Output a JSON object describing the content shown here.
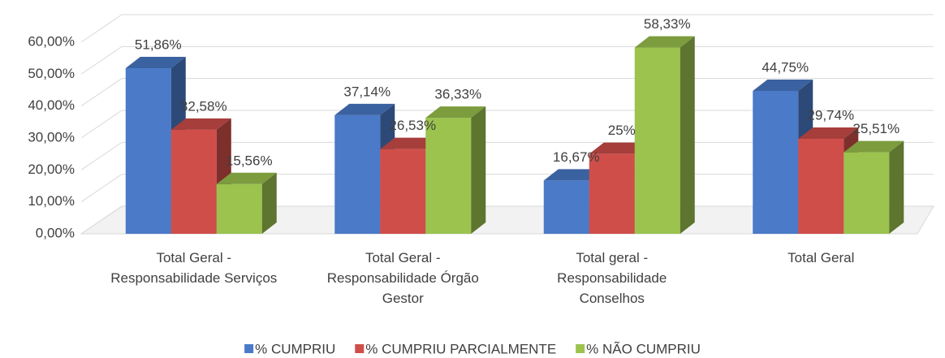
{
  "chart_data": {
    "type": "bar3d",
    "categories": [
      "Total Geral - Responsabilidade Serviços",
      "Total Geral - Responsabilidade Órgão Gestor",
      "Total geral - Responsabilidade Conselhos",
      "Total Geral"
    ],
    "series": [
      {
        "name": "% CUMPRIU",
        "color": "#4a7ac8",
        "values": [
          51.86,
          37.14,
          16.67,
          44.75
        ],
        "value_labels": [
          "51,86%",
          "37,14%",
          "16,67%",
          "44,75%"
        ]
      },
      {
        "name": "% CUMPRIU PARCIALMENTE",
        "color": "#d04e4a",
        "values": [
          32.58,
          26.53,
          25,
          29.74
        ],
        "value_labels": [
          "32,58%",
          "26,53%",
          "25%",
          "29,74%"
        ]
      },
      {
        "name": "% NÃO CUMPRIU",
        "color": "#9bc34e",
        "values": [
          15.56,
          36.33,
          58.33,
          25.51
        ],
        "value_labels": [
          "15,56%",
          "36,33%",
          "58,33%",
          "25,51%"
        ]
      }
    ],
    "ylim": [
      0,
      60
    ],
    "yticks": [
      {
        "value": 0,
        "label": "0,00%"
      },
      {
        "value": 10,
        "label": "10,00%"
      },
      {
        "value": 20,
        "label": "20,00%"
      },
      {
        "value": 30,
        "label": "30,00%"
      },
      {
        "value": 40,
        "label": "40,00%"
      },
      {
        "value": 50,
        "label": "50,00%"
      },
      {
        "value": 60,
        "label": "60,00%"
      }
    ],
    "grid": true,
    "legend": "bottom"
  }
}
